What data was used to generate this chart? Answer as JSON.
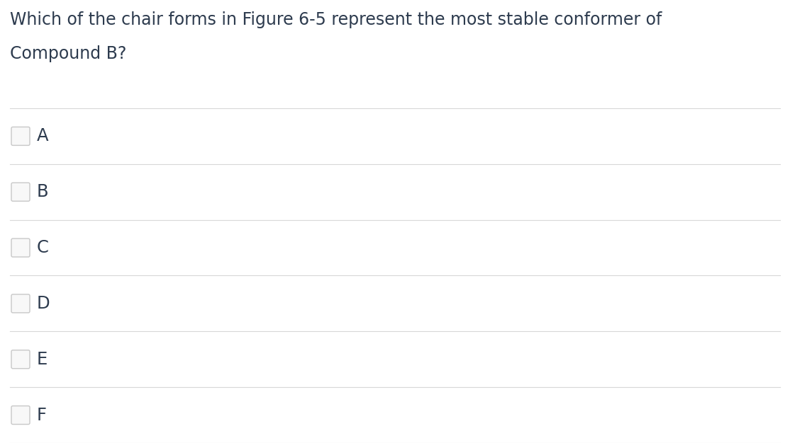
{
  "question_line1": "Which of the chair forms in Figure 6-5 represent the most stable conformer of",
  "question_line2": "Compound B?",
  "options": [
    "A",
    "B",
    "C",
    "D",
    "E",
    "F"
  ],
  "background_color": "#ffffff",
  "text_color": "#2d3b4e",
  "line_color": "#d8d8d8",
  "checkbox_edge_color": "#c8c8c8",
  "checkbox_fill": "#f8f8f8",
  "question_fontsize": 17.0,
  "option_fontsize": 17.5,
  "fig_width": 11.14,
  "fig_height": 6.26,
  "dpi": 100
}
